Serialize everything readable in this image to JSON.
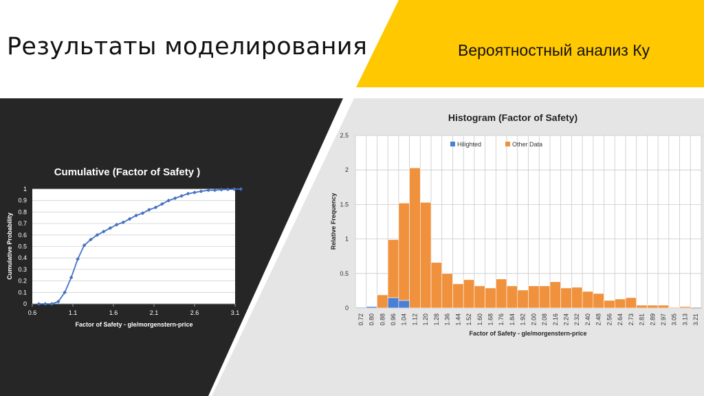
{
  "slide": {
    "title": "Результаты моделирования",
    "subtitle": "Вероятностный анализ Ку",
    "colors": {
      "dark_panel": "#262626",
      "light_panel": "#e5e5e5",
      "accent": "#ffc800"
    }
  },
  "chart_data": [
    {
      "type": "line",
      "title": "Cumulative (Factor of Safety )",
      "xlabel": "Factor of Safety - gle/morgenstern-price",
      "ylabel": "Cumulative Probability",
      "xlim": [
        0.6,
        3.1
      ],
      "ylim": [
        0,
        1
      ],
      "x_ticks": [
        "0.6",
        "1.1",
        "1.6",
        "2.1",
        "2.6",
        "3.1"
      ],
      "y_ticks": [
        "0",
        "0.1",
        "0.2",
        "0.3",
        "0.4",
        "0.5",
        "0.6",
        "0.7",
        "0.8",
        "0.9",
        "1"
      ],
      "grid": true,
      "series": [
        {
          "color": "#4472c4",
          "x": [
            0.68,
            0.76,
            0.84,
            0.92,
            1.0,
            1.08,
            1.16,
            1.24,
            1.32,
            1.4,
            1.48,
            1.56,
            1.64,
            1.72,
            1.8,
            1.88,
            1.96,
            2.04,
            2.12,
            2.2,
            2.28,
            2.36,
            2.44,
            2.52,
            2.6,
            2.68,
            2.77,
            2.85,
            2.93,
            3.01,
            3.09,
            3.17
          ],
          "y": [
            0.0,
            0.0,
            0.0,
            0.02,
            0.1,
            0.23,
            0.39,
            0.51,
            0.56,
            0.6,
            0.63,
            0.66,
            0.69,
            0.71,
            0.74,
            0.77,
            0.79,
            0.82,
            0.84,
            0.87,
            0.9,
            0.92,
            0.94,
            0.96,
            0.97,
            0.98,
            0.99,
            0.99,
            0.995,
            0.997,
            0.999,
            1.0
          ]
        }
      ]
    },
    {
      "type": "bar",
      "title": "Histogram (Factor of Safety)",
      "xlabel": "Factor of Safety - gle/morgenstern-price",
      "ylabel": "Relative Frequency",
      "ylim": [
        0,
        2.5
      ],
      "y_ticks": [
        "0",
        "0.5",
        "1",
        "1.5",
        "2",
        "2.5"
      ],
      "grid": true,
      "legend_position": "top",
      "stacked": true,
      "categories": [
        "0.72",
        "0.80",
        "0.88",
        "0.96",
        "1.04",
        "1.12",
        "1.20",
        "1.28",
        "1.36",
        "1.44",
        "1.52",
        "1.60",
        "1.68",
        "1.76",
        "1.84",
        "1.92",
        "2.00",
        "2.08",
        "2.16",
        "2.24",
        "2.32",
        "2.40",
        "2.48",
        "2.56",
        "2.64",
        "2.73",
        "2.81",
        "2.89",
        "2.97",
        "3.05",
        "3.13",
        "3.21"
      ],
      "series": [
        {
          "name": "Hilighted",
          "color": "#4a7fd4",
          "values": [
            0.01,
            0.02,
            0,
            0.15,
            0.11,
            0,
            0,
            0,
            0,
            0,
            0,
            0,
            0,
            0,
            0,
            0,
            0,
            0,
            0,
            0,
            0,
            0,
            0,
            0,
            0,
            0,
            0,
            0,
            0,
            0,
            0,
            0
          ]
        },
        {
          "name": "Other Data",
          "color": "#f0913d",
          "values": [
            0,
            0,
            0.19,
            0.84,
            1.41,
            2.03,
            1.53,
            0.66,
            0.5,
            0.35,
            0.41,
            0.32,
            0.29,
            0.42,
            0.32,
            0.26,
            0.32,
            0.32,
            0.38,
            0.29,
            0.3,
            0.24,
            0.21,
            0.11,
            0.13,
            0.15,
            0.04,
            0.04,
            0.04,
            0.01,
            0.02,
            0.0
          ]
        }
      ]
    }
  ]
}
